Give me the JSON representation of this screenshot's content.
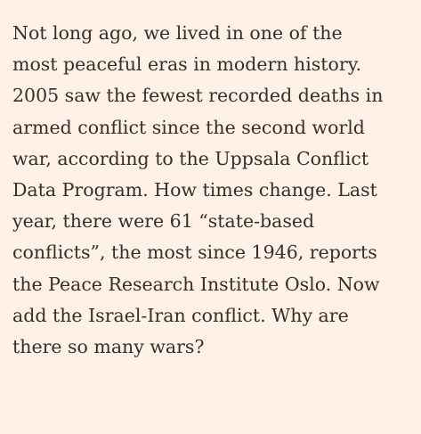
{
  "article": {
    "lines": [
      "Not long ago, we lived in one of the",
      "most peaceful eras in modern history.",
      "2005 saw the fewest recorded deaths in",
      "armed conflict since the second world",
      "war, according to the Uppsala Conflict",
      "Data Program. How times change. Last",
      "year, there were 61 “state-based",
      "conflicts”, the most since 1946, reports",
      "the Peace Research Institute Oslo. Now",
      "add the Israel-Iran conflict. Why are",
      "there so many wars?"
    ]
  }
}
